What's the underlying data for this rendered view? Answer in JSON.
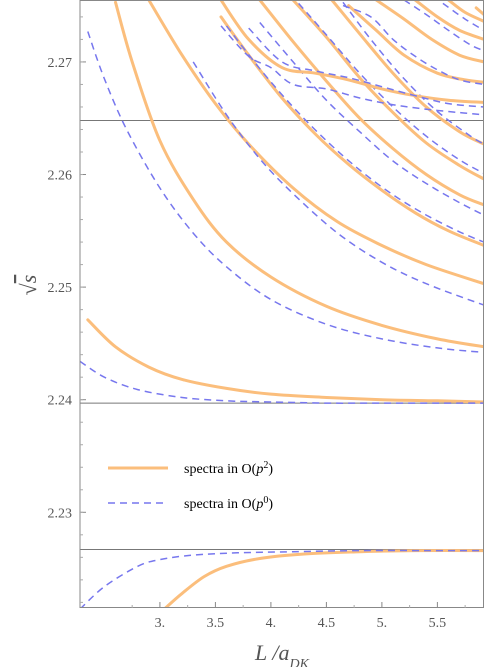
{
  "chart_data": {
    "type": "line",
    "xlabel": "L /a_DK",
    "ylabel": "√s",
    "xlim": [
      2.28,
      5.92
    ],
    "ylim": [
      2.2215,
      2.2755
    ],
    "x_ticks": [
      "3.",
      "3.5",
      "4.",
      "4.5",
      "5.",
      "5.5"
    ],
    "x_tick_values": [
      3.0,
      3.5,
      4.0,
      4.5,
      5.0,
      5.5
    ],
    "y_ticks": [
      "2.23",
      "2.24",
      "2.25",
      "2.26",
      "2.27"
    ],
    "y_tick_values": [
      2.23,
      2.24,
      2.25,
      2.26,
      2.27
    ],
    "thresholds": [
      2.2648,
      2.2397,
      2.2267
    ],
    "legend": {
      "position": "lower-left",
      "entries": [
        {
          "label_prefix": "spectra in O(",
          "label_var": "p",
          "label_sup": "2",
          "label_suffix": ")",
          "style": "solid",
          "color": "#FBBE7C"
        },
        {
          "label_prefix": "spectra in O(",
          "label_var": "p",
          "label_sup": "0",
          "label_suffix": ")",
          "style": "dashed",
          "color": "#7777EE"
        }
      ]
    },
    "series": [
      {
        "style": "solid",
        "x": [
          3.05,
          3.2,
          3.4,
          3.6,
          3.9,
          4.3,
          4.8,
          5.3,
          5.92
        ],
        "y": [
          2.2215,
          2.2228,
          2.2243,
          2.2252,
          2.2259,
          2.2263,
          2.2265,
          2.2266,
          2.2266
        ]
      },
      {
        "style": "dashed",
        "x": [
          2.28,
          2.5,
          2.8,
          3.0,
          3.3,
          3.7,
          4.2,
          4.8,
          5.4,
          5.92
        ],
        "y": [
          2.2214,
          2.2234,
          2.2252,
          2.2258,
          2.2262,
          2.2264,
          2.2265,
          2.2266,
          2.2266,
          2.2266
        ]
      },
      {
        "style": "solid",
        "x": [
          2.35,
          2.6,
          2.9,
          3.2,
          3.6,
          4.0,
          4.5,
          5.0,
          5.5,
          5.92
        ],
        "y": [
          2.2471,
          2.2447,
          2.2429,
          2.2418,
          2.241,
          2.2405,
          2.2402,
          2.24,
          2.2399,
          2.2398
        ]
      },
      {
        "style": "dashed",
        "x": [
          2.28,
          2.5,
          2.8,
          3.2,
          3.6,
          4.0,
          4.5,
          5.0,
          5.5,
          5.92
        ],
        "y": [
          2.2434,
          2.242,
          2.2409,
          2.2402,
          2.2399,
          2.2398,
          2.2397,
          2.2397,
          2.2397,
          2.2397
        ]
      },
      {
        "style": "solid",
        "x": [
          2.6,
          2.75,
          3.0,
          3.3,
          3.6,
          4.0,
          4.5,
          5.0,
          5.5,
          5.92
        ],
        "y": [
          2.2753,
          2.27,
          2.263,
          2.2578,
          2.254,
          2.2509,
          2.2483,
          2.2466,
          2.2454,
          2.2447
        ]
      },
      {
        "style": "dashed",
        "x": [
          2.35,
          2.5,
          2.7,
          3.0,
          3.3,
          3.6,
          4.0,
          4.5,
          5.0,
          5.5,
          5.92
        ],
        "y": [
          2.2727,
          2.2685,
          2.264,
          2.2588,
          2.2548,
          2.2518,
          2.2489,
          2.2467,
          2.2454,
          2.2446,
          2.2442
        ]
      },
      {
        "style": "solid",
        "x": [
          2.9,
          3.2,
          3.5,
          3.8,
          4.2,
          4.6,
          5.0,
          5.4,
          5.92
        ],
        "y": [
          2.2755,
          2.2706,
          2.2663,
          2.2627,
          2.2588,
          2.2558,
          2.2537,
          2.252,
          2.2503
        ]
      },
      {
        "style": "dashed",
        "x": [
          3.3,
          3.6,
          3.9,
          4.2,
          4.6,
          5.0,
          5.4,
          5.92
        ],
        "y": [
          2.27,
          2.2653,
          2.2614,
          2.2583,
          2.2548,
          2.2522,
          2.2503,
          2.2484
        ]
      },
      {
        "style": "solid",
        "x": [
          3.55,
          3.8,
          4.1,
          4.4,
          4.7,
          5.0,
          5.3,
          5.6,
          5.92
        ],
        "y": [
          2.274,
          2.2706,
          2.2668,
          2.2636,
          2.2609,
          2.2586,
          2.2566,
          2.255,
          2.2537
        ]
      },
      {
        "style": "dashed",
        "x": [
          3.6,
          3.9,
          4.2,
          4.5,
          4.8,
          5.1,
          5.4,
          5.7,
          5.92
        ],
        "y": [
          2.2732,
          2.2694,
          2.266,
          2.263,
          2.2604,
          2.2582,
          2.2564,
          2.2549,
          2.254
        ]
      },
      {
        "style": "solid",
        "x": [
          3.9,
          4.2,
          4.5,
          4.8,
          5.1,
          5.4,
          5.7,
          5.92
        ],
        "y": [
          2.2755,
          2.2718,
          2.2683,
          2.265,
          2.2623,
          2.26,
          2.2582,
          2.2573
        ]
      },
      {
        "style": "dashed",
        "x": [
          3.9,
          4.2,
          4.5,
          4.8,
          5.1,
          5.4,
          5.7,
          5.92
        ],
        "y": [
          2.2735,
          2.27,
          2.2666,
          2.2638,
          2.2612,
          2.2592,
          2.2575,
          2.2564
        ]
      },
      {
        "style": "solid",
        "x": [
          4.2,
          4.5,
          4.8,
          5.1,
          5.4,
          5.7,
          5.92
        ],
        "y": [
          2.2755,
          2.2722,
          2.2686,
          2.2655,
          2.2628,
          2.2608,
          2.2596
        ]
      },
      {
        "style": "dashed",
        "x": [
          4.25,
          4.5,
          4.8,
          5.1,
          5.4,
          5.7,
          5.92
        ],
        "y": [
          2.2752,
          2.2724,
          2.269,
          2.266,
          2.2634,
          2.2613,
          2.2601
        ]
      },
      {
        "style": "solid",
        "x": [
          4.55,
          4.8,
          5.1,
          5.4,
          5.7,
          5.92
        ],
        "y": [
          2.2755,
          2.2725,
          2.269,
          2.266,
          2.2638,
          2.2627
        ]
      },
      {
        "style": "dashed",
        "x": [
          4.65,
          4.9,
          5.2,
          5.5,
          5.8,
          5.92
        ],
        "y": [
          2.2753,
          2.272,
          2.2685,
          2.2656,
          2.2634,
          2.2627
        ]
      },
      {
        "style": "solid",
        "x": [
          3.55,
          3.8,
          4.1,
          4.4,
          4.7,
          5.0,
          5.3,
          5.6,
          5.92
        ],
        "y": [
          2.2755,
          2.272,
          2.2695,
          2.269,
          2.2684,
          2.2676,
          2.267,
          2.2666,
          2.2664
        ]
      },
      {
        "style": "dashed",
        "x": [
          3.8,
          4.1,
          4.4,
          4.7,
          5.0,
          5.3,
          5.6,
          5.92
        ],
        "y": [
          2.273,
          2.27,
          2.2692,
          2.2686,
          2.2678,
          2.267,
          2.2663,
          2.266
        ]
      },
      {
        "style": "solid",
        "x": [
          4.7,
          4.95,
          5.2,
          5.5,
          5.75,
          5.92
        ],
        "y": [
          2.275,
          2.2728,
          2.2706,
          2.269,
          2.2684,
          2.2682
        ]
      },
      {
        "style": "solid",
        "x": [
          4.95,
          5.2,
          5.45,
          5.7,
          5.92
        ],
        "y": [
          2.2755,
          2.2738,
          2.272,
          2.2706,
          2.27
        ]
      },
      {
        "style": "solid",
        "x": [
          5.3,
          5.5,
          5.7,
          5.92
        ],
        "y": [
          2.2755,
          2.274,
          2.2728,
          2.272
        ]
      },
      {
        "style": "solid",
        "x": [
          5.6,
          5.75,
          5.92
        ],
        "y": [
          2.2755,
          2.2744,
          2.2736
        ]
      },
      {
        "style": "solid",
        "x": [
          5.85,
          5.92
        ],
        "y": [
          2.2748,
          2.2742
        ]
      },
      {
        "style": "dashed",
        "x": [
          3.55,
          3.8,
          4.0,
          4.2,
          4.5,
          4.8,
          5.1,
          5.4,
          5.7,
          5.92
        ],
        "y": [
          2.2732,
          2.2705,
          2.2695,
          2.268,
          2.2676,
          2.2668,
          2.2662,
          2.2658,
          2.2655,
          2.2653
        ]
      },
      {
        "style": "dashed",
        "x": [
          4.65,
          4.9,
          5.1,
          5.3,
          5.5,
          5.7,
          5.92
        ],
        "y": [
          2.275,
          2.274,
          2.272,
          2.2705,
          2.2693,
          2.2684,
          2.268
        ]
      },
      {
        "style": "dashed",
        "x": [
          5.2,
          5.4,
          5.6,
          5.8,
          5.92
        ],
        "y": [
          2.2755,
          2.2742,
          2.2728,
          2.2715,
          2.271
        ]
      },
      {
        "style": "dashed",
        "x": [
          5.55,
          5.75,
          5.92
        ],
        "y": [
          2.2752,
          2.2738,
          2.2728
        ]
      }
    ]
  }
}
